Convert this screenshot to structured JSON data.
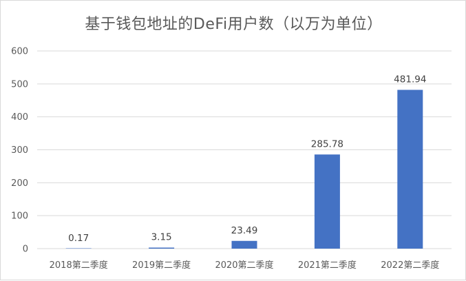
{
  "chart_data": {
    "type": "bar",
    "title": "基于钱包地址的DeFi用户数（以万为单位）",
    "categories": [
      "2018第二季度",
      "2019第二季度",
      "2020第二季度",
      "2021第二季度",
      "2022第二季度"
    ],
    "values": [
      0.17,
      3.15,
      23.49,
      285.78,
      481.94
    ],
    "data_labels": [
      "0.17",
      "3.15",
      "23.49",
      "285.78",
      "481.94"
    ],
    "ylim": [
      0,
      600
    ],
    "yticks": [
      0,
      100,
      200,
      300,
      400,
      500,
      600
    ],
    "xlabel": "",
    "ylabel": "",
    "grid": true,
    "legend": "none",
    "bar_color": "#4472c4",
    "grid_color": "#d9d9d9",
    "text_color": "#595959"
  }
}
